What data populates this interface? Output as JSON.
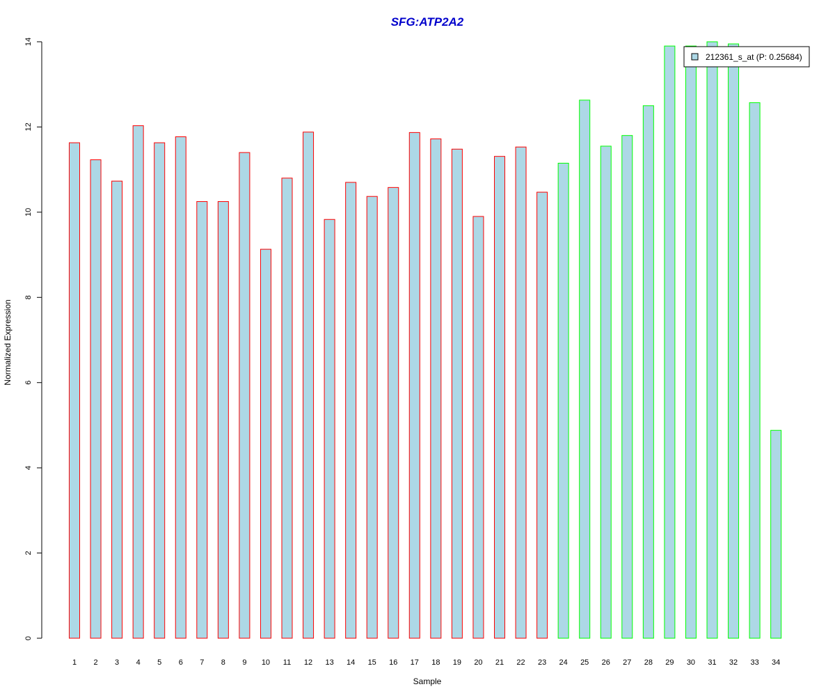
{
  "chart_data": {
    "type": "bar",
    "title": "SFG:ATP2A2",
    "xlabel": "Sample",
    "ylabel": "Normalized Expression",
    "ylim": [
      0,
      14
    ],
    "yticks": [
      0,
      2,
      4,
      6,
      8,
      10,
      12,
      14
    ],
    "grid": false,
    "legend_position": "top-right",
    "categories": [
      "1",
      "2",
      "3",
      "4",
      "5",
      "6",
      "7",
      "8",
      "9",
      "10",
      "11",
      "12",
      "13",
      "14",
      "15",
      "16",
      "17",
      "18",
      "19",
      "20",
      "21",
      "22",
      "23",
      "24",
      "25",
      "26",
      "27",
      "28",
      "29",
      "30",
      "31",
      "32",
      "33",
      "34"
    ],
    "series": [
      {
        "name": "212361_s_at (P: 0.25684)",
        "values": [
          11.63,
          11.23,
          10.73,
          12.03,
          11.63,
          11.77,
          10.25,
          10.25,
          11.4,
          9.13,
          10.8,
          11.88,
          9.83,
          10.7,
          10.37,
          10.58,
          11.87,
          11.72,
          11.48,
          9.9,
          11.31,
          11.53,
          10.47,
          11.15,
          12.63,
          11.55,
          11.8,
          12.5,
          13.9,
          13.9,
          14.0,
          13.95,
          12.57,
          4.88
        ],
        "fill": "#add8e6",
        "border_colors": [
          "#ff0000",
          "#ff0000",
          "#ff0000",
          "#ff0000",
          "#ff0000",
          "#ff0000",
          "#ff0000",
          "#ff0000",
          "#ff0000",
          "#ff0000",
          "#ff0000",
          "#ff0000",
          "#ff0000",
          "#ff0000",
          "#ff0000",
          "#ff0000",
          "#ff0000",
          "#ff0000",
          "#ff0000",
          "#ff0000",
          "#ff0000",
          "#ff0000",
          "#ff0000",
          "#00ff00",
          "#00ff00",
          "#00ff00",
          "#00ff00",
          "#00ff00",
          "#00ff00",
          "#00ff00",
          "#00ff00",
          "#00ff00",
          "#00ff00",
          "#00ff00"
        ]
      }
    ],
    "colors": {
      "title": "#0000cc",
      "bar_fill": "#add8e6",
      "group1_border": "#ff0000",
      "group2_border": "#00ff00",
      "axis": "#000000"
    }
  }
}
